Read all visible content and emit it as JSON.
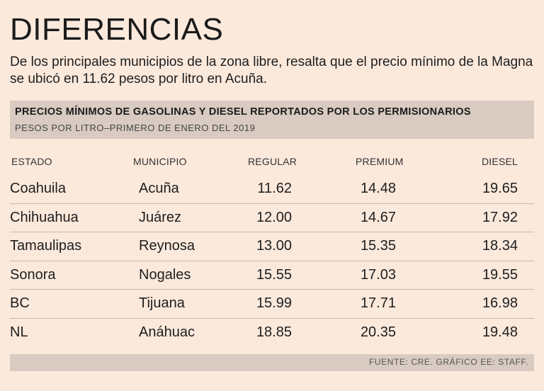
{
  "header": {
    "title": "DIFERENCIAS",
    "description": "De los principales municipios de la zona libre, resalta que el precio mínimo de la Magna se ubicó en 11.62 pesos por litro en Acuña."
  },
  "chart_data": {
    "type": "table",
    "title": "PRECIOS MÍNIMOS DE GASOLINAS Y DIESEL REPORTADOS POR LOS PERMISIONARIOS",
    "subtitle": "PESOS POR LITRO–PRIMERO DE ENERO DEL 2019",
    "columns": [
      "ESTADO",
      "MUNICIPIO",
      "REGULAR",
      "PREMIUM",
      "DIESEL"
    ],
    "rows": [
      {
        "estado": "Coahuila",
        "municipio": "Acuña",
        "regular": "11.62",
        "premium": "14.48",
        "diesel": "19.65"
      },
      {
        "estado": "Chihuahua",
        "municipio": "Juárez",
        "regular": "12.00",
        "premium": "14.67",
        "diesel": "17.92"
      },
      {
        "estado": "Tamaulipas",
        "municipio": "Reynosa",
        "regular": "13.00",
        "premium": "15.35",
        "diesel": "18.34"
      },
      {
        "estado": "Sonora",
        "municipio": "Nogales",
        "regular": "15.55",
        "premium": "17.03",
        "diesel": "19.55"
      },
      {
        "estado": "BC",
        "municipio": "Tijuana",
        "regular": "15.99",
        "premium": "17.71",
        "diesel": "16.98"
      },
      {
        "estado": "NL",
        "municipio": "Anáhuac",
        "regular": "18.85",
        "premium": "20.35",
        "diesel": "19.48"
      }
    ],
    "source": "FUENTE: CRE. GRÁFICO EE: STAFF."
  },
  "colors": {
    "background": "#fbe9dc",
    "band": "#d9cbc1",
    "divider": "#c6b9b0"
  }
}
